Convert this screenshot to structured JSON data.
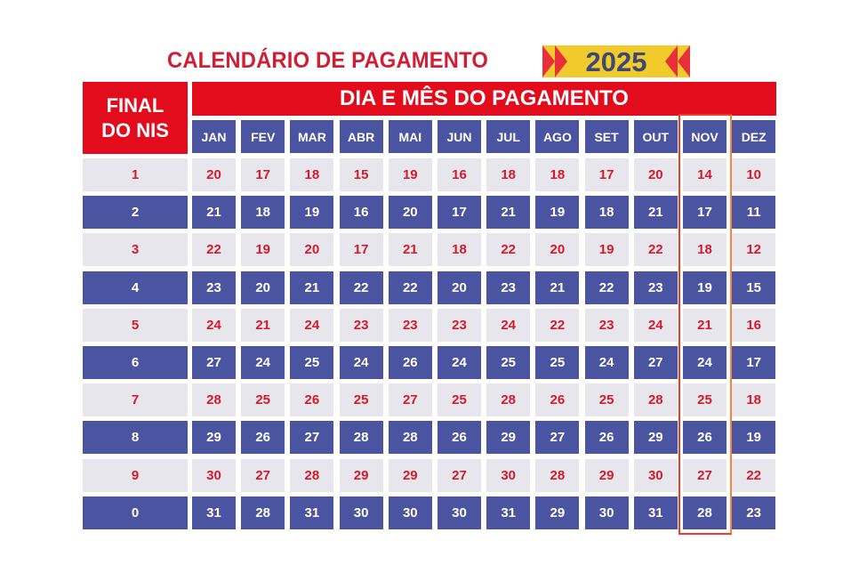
{
  "title": "CALENDÁRIO DE PAGAMENTO",
  "year": "2025",
  "nis_header": [
    "FINAL",
    "DO NIS"
  ],
  "period_header": "DIA E MÊS DO PAGAMENTO",
  "highlighted_month": "NOV",
  "colors": {
    "red": "#e30c1d",
    "blue": "#4a54a0",
    "light": "#e6e6ec",
    "yellow": "#f1cb2c",
    "highlight": "#ef3b2a"
  },
  "chart_data": {
    "type": "table",
    "columns": [
      "JAN",
      "FEV",
      "MAR",
      "ABR",
      "MAI",
      "JUN",
      "JUL",
      "AGO",
      "SET",
      "OUT",
      "NOV",
      "DEZ"
    ],
    "rows": [
      {
        "nis": "1",
        "days": [
          "20",
          "17",
          "18",
          "15",
          "19",
          "16",
          "18",
          "18",
          "17",
          "20",
          "14",
          "10"
        ]
      },
      {
        "nis": "2",
        "days": [
          "21",
          "18",
          "19",
          "16",
          "20",
          "17",
          "21",
          "19",
          "18",
          "21",
          "17",
          "11"
        ]
      },
      {
        "nis": "3",
        "days": [
          "22",
          "19",
          "20",
          "17",
          "21",
          "18",
          "22",
          "20",
          "19",
          "22",
          "18",
          "12"
        ]
      },
      {
        "nis": "4",
        "days": [
          "23",
          "20",
          "21",
          "22",
          "22",
          "20",
          "23",
          "21",
          "22",
          "23",
          "19",
          "15"
        ]
      },
      {
        "nis": "5",
        "days": [
          "24",
          "21",
          "24",
          "23",
          "23",
          "23",
          "24",
          "22",
          "23",
          "24",
          "21",
          "16"
        ]
      },
      {
        "nis": "6",
        "days": [
          "27",
          "24",
          "25",
          "24",
          "26",
          "24",
          "25",
          "25",
          "24",
          "27",
          "24",
          "17"
        ]
      },
      {
        "nis": "7",
        "days": [
          "28",
          "25",
          "26",
          "25",
          "27",
          "25",
          "28",
          "26",
          "25",
          "28",
          "25",
          "18"
        ]
      },
      {
        "nis": "8",
        "days": [
          "29",
          "26",
          "27",
          "28",
          "28",
          "26",
          "29",
          "27",
          "26",
          "29",
          "26",
          "19"
        ]
      },
      {
        "nis": "9",
        "days": [
          "30",
          "27",
          "28",
          "29",
          "29",
          "27",
          "30",
          "28",
          "29",
          "30",
          "27",
          "22"
        ]
      },
      {
        "nis": "0",
        "days": [
          "31",
          "28",
          "31",
          "30",
          "30",
          "30",
          "31",
          "29",
          "30",
          "31",
          "28",
          "23"
        ]
      }
    ]
  }
}
